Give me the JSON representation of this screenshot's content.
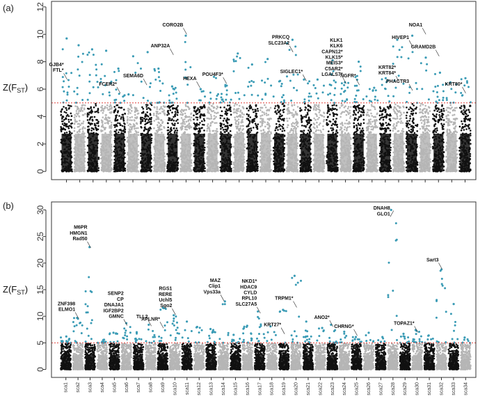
{
  "chart_data": [
    {
      "type": "scatter",
      "panel": "(a)",
      "ylabel_main": "Z(F",
      "ylabel_sub": "ST",
      "ylabel_close": ")",
      "ylim": [
        -0.6,
        12.4
      ],
      "yticks": [
        0,
        2,
        4,
        6,
        8,
        10,
        12
      ],
      "threshold": 5,
      "n_chromosomes": 31,
      "show_category_labels": false,
      "colors": {
        "even": "#111111",
        "odd": "#b5b5b5",
        "outlier": "#3a9bb5",
        "threshold": "#e0403a"
      },
      "chromosome_max": [
        9.7,
        9.2,
        8.9,
        8.8,
        7.5,
        8.4,
        8.7,
        7.5,
        6.2,
        9.9,
        6.0,
        6.9,
        6.3,
        8.6,
        7.8,
        8.2,
        6.6,
        9.6,
        6.7,
        6.7,
        8.1,
        6.5,
        8.0,
        6.1,
        6.8,
        9.6,
        9.9,
        8.3,
        7.2,
        6.5,
        6.8
      ],
      "annotations": [
        {
          "chrom": 1,
          "lines": [
            "GJB4*",
            "FTL*"
          ],
          "anchor": 6.6
        },
        {
          "chrom": 5,
          "lines": [
            "FCER2*"
          ],
          "anchor": 5.6
        },
        {
          "chrom": 7,
          "lines": [
            "SEMA6D"
          ],
          "anchor": 6.2
        },
        {
          "chrom": 9,
          "lines": [
            "ANP32A"
          ],
          "anchor": 8.4
        },
        {
          "chrom": 10,
          "lines": [
            "CORO2B"
          ],
          "anchor": 9.9
        },
        {
          "chrom": 11,
          "lines": [
            "HEXA"
          ],
          "anchor": 6.0
        },
        {
          "chrom": 13,
          "lines": [
            "POU4F3*"
          ],
          "anchor": 6.3
        },
        {
          "chrom": 18,
          "lines": [
            "PRKCQ",
            "SLC23A2"
          ],
          "anchor": 8.6
        },
        {
          "chrom": 19,
          "lines": [
            "SIGLEC1*"
          ],
          "anchor": 6.5
        },
        {
          "chrom": 22,
          "lines": [
            "KLK1",
            "KLK6",
            "CAPN12*",
            "KLK15*",
            "MEIS3*",
            "C5AR2*",
            "LGALS7*"
          ],
          "anchor": 6.3
        },
        {
          "chrom": 23,
          "lines": [
            "NGFR*"
          ],
          "anchor": 6.2
        },
        {
          "chrom": 26,
          "lines": [
            "KRT82*",
            "KRT84*"
          ],
          "anchor": 6.4
        },
        {
          "chrom": 27,
          "lines": [
            "HIVEP1"
          ],
          "anchor": 9.0
        },
        {
          "chrom": 27,
          "lines": [
            "PHACTR3"
          ],
          "anchor": 5.8
        },
        {
          "chrom": 28,
          "lines": [
            "NOA1"
          ],
          "anchor": 9.9
        },
        {
          "chrom": 29,
          "lines": [
            "GRAMD2B"
          ],
          "anchor": 8.3
        },
        {
          "chrom": 31,
          "lines": [
            "KRT80*"
          ],
          "anchor": 5.6
        }
      ]
    },
    {
      "type": "scatter",
      "panel": "(b)",
      "ylabel_main": "Z(F",
      "ylabel_sub": "ST",
      "ylabel_close": ")",
      "ylim": [
        -1.5,
        31.5
      ],
      "yticks": [
        0,
        5,
        10,
        15,
        20,
        25,
        30
      ],
      "threshold": 5,
      "n_chromosomes": 34,
      "show_category_labels": true,
      "categories": [
        "sca1",
        "sca2",
        "sca3",
        "sca4",
        "sca5",
        "sca6",
        "sca7",
        "sca8",
        "sca9",
        "sca10",
        "sca11",
        "sca12",
        "sca13",
        "sca14",
        "sca15",
        "sca16",
        "sca17",
        "sca18",
        "sca19",
        "sca20",
        "sca21",
        "sca22",
        "sca23",
        "sca24",
        "sca25",
        "sca26",
        "sca27",
        "sca28",
        "sca29",
        "sca30",
        "sca31",
        "sca32",
        "sca33",
        "sca34"
      ],
      "colors": {
        "even": "#111111",
        "odd": "#b5b5b5",
        "outlier": "#3a9bb5",
        "threshold": "#e0403a"
      },
      "chromosome_max": [
        6.2,
        9.7,
        23.0,
        5.6,
        6.9,
        8.7,
        7.0,
        8.4,
        11.6,
        10.2,
        9.0,
        8.0,
        7.6,
        12.8,
        6.5,
        8.2,
        10.9,
        8.1,
        11.2,
        17.6,
        9.0,
        7.8,
        8.4,
        7.1,
        6.1,
        6.9,
        6.1,
        30.0,
        6.7,
        7.4,
        6.4,
        18.8,
        12.3,
        6.0
      ],
      "annotations": [
        {
          "chrom": 2,
          "lines": [
            "ZNF398",
            "ELMO1"
          ],
          "anchor": 9.3
        },
        {
          "chrom": 3,
          "lines": [
            "M6PR",
            "HMGN1",
            "Rad50"
          ],
          "anchor": 22.6
        },
        {
          "chrom": 6,
          "lines": [
            "SENP2",
            "CP",
            "DNAJA1",
            "IGF2BP2",
            "GMNC"
          ],
          "anchor": 8.0
        },
        {
          "chrom": 8,
          "lines": [
            "TLL2"
          ],
          "anchor": 7.9
        },
        {
          "chrom": 9,
          "lines": [
            "APLNR*"
          ],
          "anchor": 7.5
        },
        {
          "chrom": 10,
          "lines": [
            "RGS1",
            "RERE",
            "Uchl5",
            "Sgo2"
          ],
          "anchor": 10.0
        },
        {
          "chrom": 14,
          "lines": [
            "MAZ",
            "Clip1",
            "Vps33a"
          ],
          "anchor": 12.6
        },
        {
          "chrom": 17,
          "lines": [
            "NKD1*",
            "HDAC9",
            "CYLD",
            "RPL10",
            "SLC27A5"
          ],
          "anchor": 10.3
        },
        {
          "chrom": 19,
          "lines": [
            "KRT27*"
          ],
          "anchor": 6.4
        },
        {
          "chrom": 20,
          "lines": [
            "TRPM1*"
          ],
          "anchor": 11.4
        },
        {
          "chrom": 23,
          "lines": [
            "ANO2*"
          ],
          "anchor": 7.8
        },
        {
          "chrom": 25,
          "lines": [
            "CHRNG*"
          ],
          "anchor": 6.1
        },
        {
          "chrom": 28,
          "lines": [
            "DNAH8",
            "GLO1"
          ],
          "anchor": 29.6
        },
        {
          "chrom": 30,
          "lines": [
            "TOPAZ1*"
          ],
          "anchor": 6.7
        },
        {
          "chrom": 32,
          "lines": [
            "Sart3"
          ],
          "anchor": 18.6
        }
      ]
    }
  ]
}
